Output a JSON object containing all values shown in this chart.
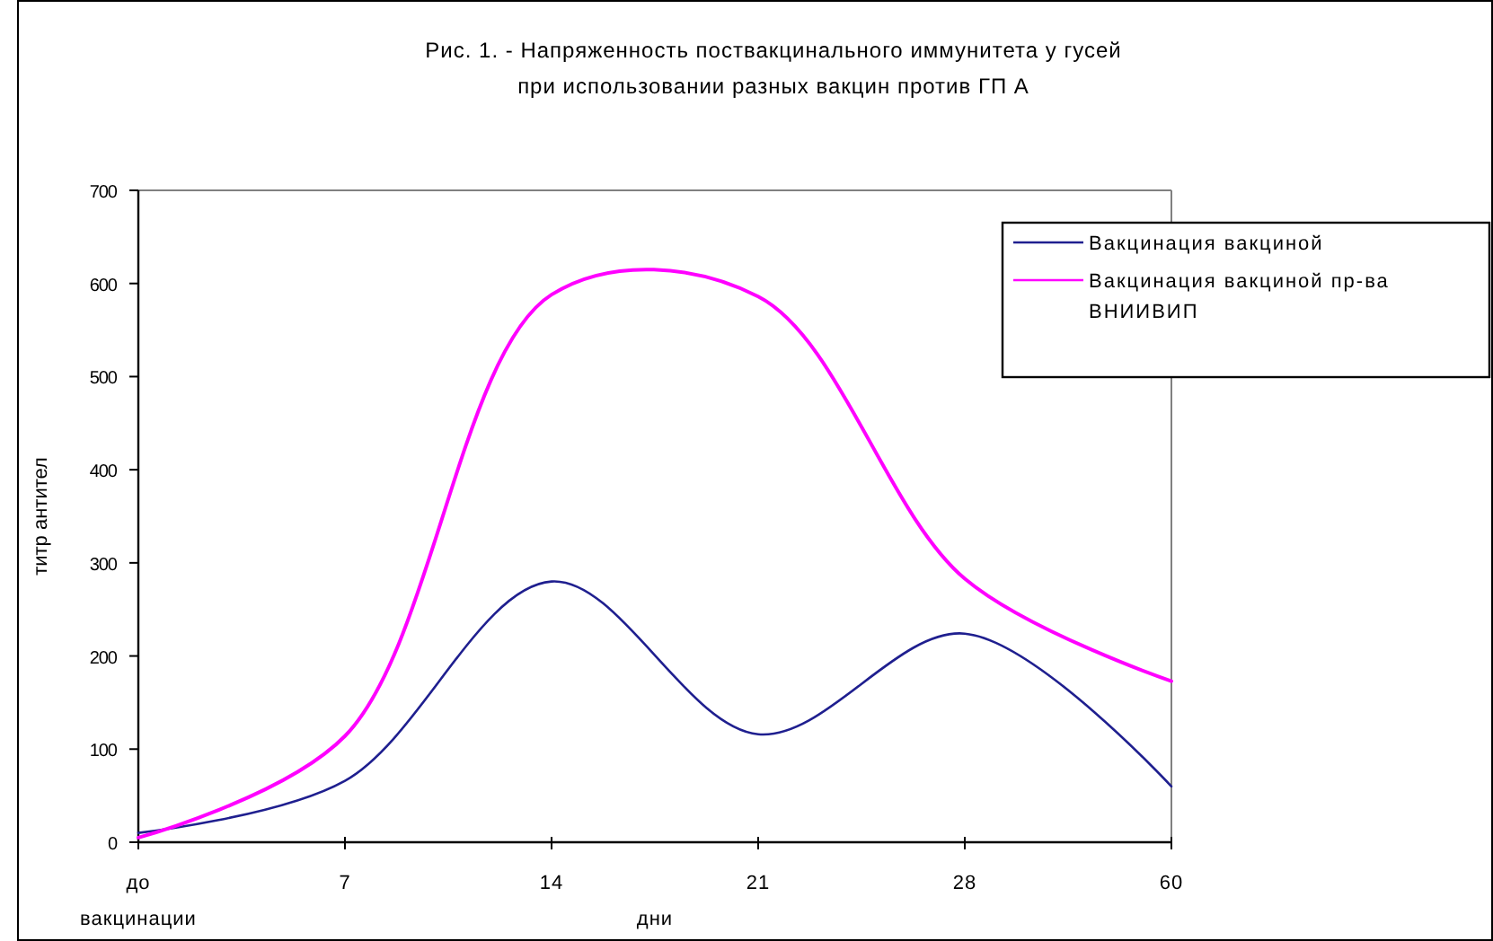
{
  "chart_data": {
    "type": "line",
    "title": "Рис. 1. - Напряженность поствакцинального иммунитета у гусей\nпри использовании разных вакцин против ГП А",
    "xlabel": "дни",
    "ylabel": "титр антител",
    "categories": [
      "до\nвакцинации",
      "7",
      "14",
      "21",
      "28",
      "60"
    ],
    "series": [
      {
        "name": "Вакцинация вакциной",
        "color": "#1f1f8f",
        "values": [
          10,
          66,
          280,
          116,
          224,
          60
        ]
      },
      {
        "name": "Вакцинация вакциной пр-ва ВНИИВИП",
        "color": "#ff00ff",
        "values": [
          5,
          114,
          588,
          586,
          283,
          173
        ]
      }
    ],
    "ylim": [
      0,
      700
    ],
    "yticks": [
      0,
      100,
      200,
      300,
      400,
      500,
      600,
      700
    ],
    "grid": false,
    "legend": "top right",
    "marker": "none",
    "line_style": "solid"
  }
}
